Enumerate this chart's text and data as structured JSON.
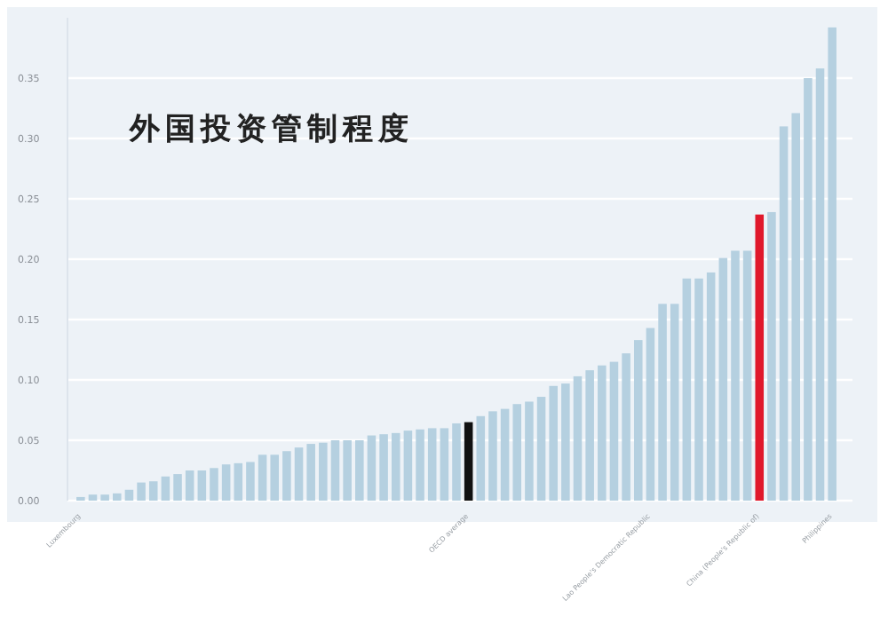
{
  "chart_data": {
    "type": "bar",
    "title": "外国投资管制程度",
    "categories": [
      "Luxembourg",
      null,
      null,
      null,
      null,
      null,
      null,
      null,
      null,
      null,
      null,
      null,
      null,
      null,
      null,
      null,
      null,
      null,
      null,
      null,
      null,
      null,
      null,
      null,
      null,
      null,
      null,
      null,
      null,
      null,
      null,
      null,
      "OECD average",
      null,
      null,
      null,
      null,
      null,
      null,
      null,
      null,
      null,
      null,
      null,
      null,
      null,
      null,
      "Lao People's Democratic Republic",
      null,
      null,
      null,
      null,
      null,
      null,
      null,
      null,
      "China (People's Republic of)",
      null,
      null,
      null,
      null,
      null,
      "Philippines"
    ],
    "values": [
      0.003,
      0.005,
      0.005,
      0.006,
      0.009,
      0.015,
      0.016,
      0.02,
      0.022,
      0.025,
      0.025,
      0.027,
      0.03,
      0.031,
      0.032,
      0.038,
      0.038,
      0.041,
      0.044,
      0.047,
      0.048,
      0.05,
      0.05,
      0.05,
      0.054,
      0.055,
      0.056,
      0.058,
      0.059,
      0.06,
      0.06,
      0.064,
      0.065,
      0.07,
      0.074,
      0.076,
      0.08,
      0.082,
      0.086,
      0.095,
      0.097,
      0.103,
      0.108,
      0.112,
      0.115,
      0.122,
      0.133,
      0.143,
      0.163,
      0.163,
      0.184,
      0.184,
      0.189,
      0.201,
      0.207,
      0.207,
      0.237,
      0.239,
      0.31,
      0.321,
      0.35,
      0.358,
      0.392
    ],
    "colors": [
      "#b5d0e0",
      "#b5d0e0",
      "#b5d0e0",
      "#b5d0e0",
      "#b5d0e0",
      "#b5d0e0",
      "#b5d0e0",
      "#b5d0e0",
      "#b5d0e0",
      "#b5d0e0",
      "#b5d0e0",
      "#b5d0e0",
      "#b5d0e0",
      "#b5d0e0",
      "#b5d0e0",
      "#b5d0e0",
      "#b5d0e0",
      "#b5d0e0",
      "#b5d0e0",
      "#b5d0e0",
      "#b5d0e0",
      "#b5d0e0",
      "#b5d0e0",
      "#b5d0e0",
      "#b5d0e0",
      "#b5d0e0",
      "#b5d0e0",
      "#b5d0e0",
      "#b5d0e0",
      "#b5d0e0",
      "#b5d0e0",
      "#b5d0e0",
      "#111111",
      "#b5d0e0",
      "#b5d0e0",
      "#b5d0e0",
      "#b5d0e0",
      "#b5d0e0",
      "#b5d0e0",
      "#b5d0e0",
      "#b5d0e0",
      "#b5d0e0",
      "#b5d0e0",
      "#b5d0e0",
      "#b5d0e0",
      "#b5d0e0",
      "#b5d0e0",
      "#b5d0e0",
      "#b5d0e0",
      "#b5d0e0",
      "#b5d0e0",
      "#b5d0e0",
      "#b5d0e0",
      "#b5d0e0",
      "#b5d0e0",
      "#b5d0e0",
      "#e0182b",
      "#b5d0e0",
      "#b5d0e0",
      "#b5d0e0",
      "#b5d0e0",
      "#b5d0e0",
      "#b5d0e0"
    ],
    "ylim": [
      0,
      0.4
    ],
    "yticks": [
      {
        "value": 0,
        "label": "0.00"
      },
      0.05,
      {
        "value": 0.1,
        "label": "0.10"
      },
      0.15,
      {
        "value": 0.2,
        "label": "0.20"
      },
      0.25,
      {
        "value": 0.3,
        "label": "0.30"
      },
      0.35
    ],
    "grid": "y"
  }
}
